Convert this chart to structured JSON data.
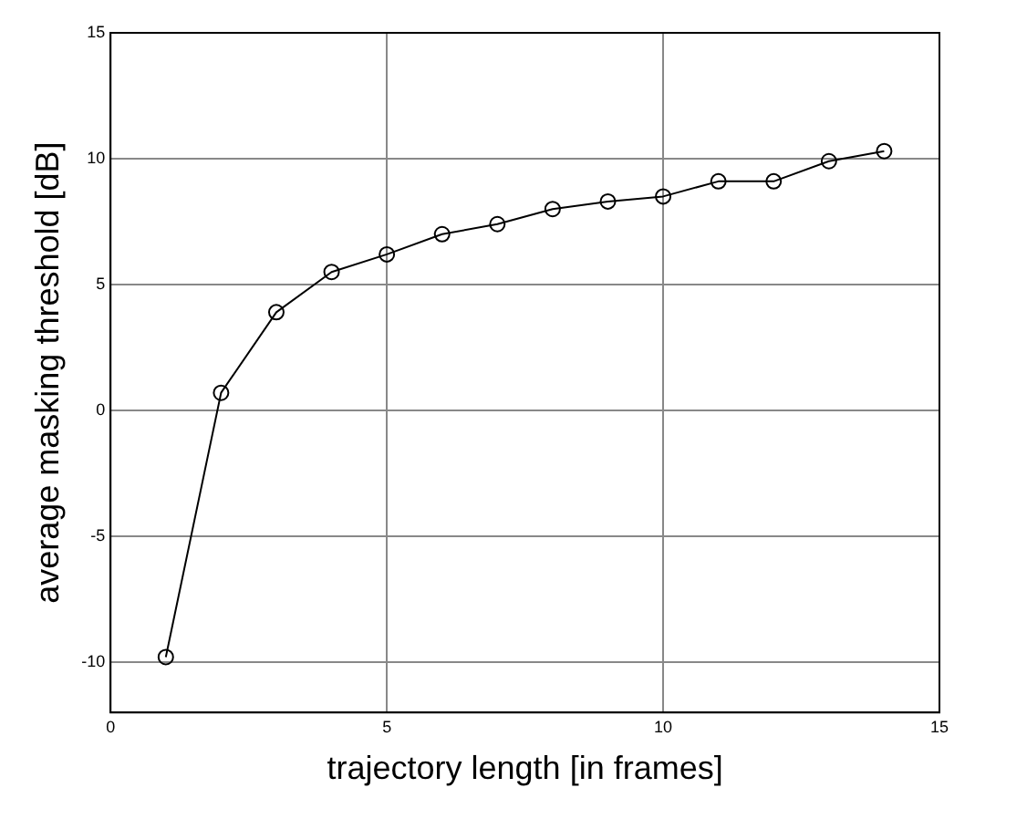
{
  "chart_data": {
    "type": "line",
    "xlabel": "trajectory length [in frames]",
    "ylabel": "average masking threshold [dB]",
    "x": [
      1,
      2,
      3,
      4,
      5,
      6,
      7,
      8,
      9,
      10,
      11,
      12,
      13,
      14
    ],
    "series": [
      {
        "color": "#000000",
        "values": [
          -9.8,
          0.7,
          3.9,
          5.5,
          6.2,
          7.0,
          7.4,
          8.0,
          8.3,
          8.5,
          9.1,
          9.1,
          9.9,
          10.3
        ]
      }
    ],
    "xlim": [
      0,
      15
    ],
    "xticks": [
      0,
      5,
      10,
      15
    ],
    "ylim": [
      -12,
      15
    ],
    "yticks": [
      -10,
      -5,
      0,
      5,
      10,
      15
    ],
    "grid": true,
    "marker": "circle",
    "line_style": "solid"
  }
}
